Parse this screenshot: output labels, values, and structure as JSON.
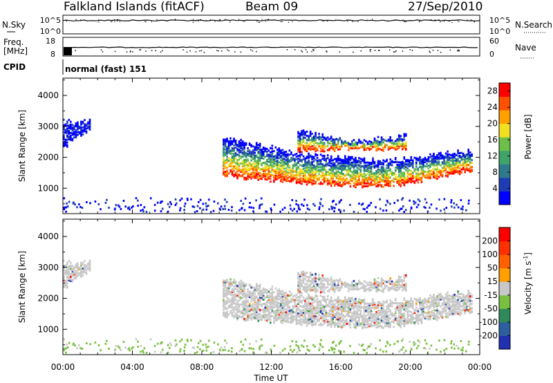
{
  "header": {
    "station": "Falkland Islands (fitACF)",
    "beam": "Beam 09",
    "date": "27/Sep/2010"
  },
  "chart_data": [
    {
      "type": "line",
      "panel": "noise",
      "left_label": "N.Sky",
      "right_label": "N.Search",
      "left_ticks": [
        "10^5",
        "10^0"
      ],
      "right_ticks": [
        "10^5",
        "10^0"
      ],
      "note": ""
    },
    {
      "type": "line",
      "panel": "frequency",
      "left_label_line1": "Freq.",
      "left_label_line2": "[MHz]",
      "right_label": "Nave",
      "left_ticks": [
        18,
        8
      ],
      "right_ticks": [
        60,
        0
      ],
      "cpid_label": "CPID",
      "cpid_text": "normal (fast) 151"
    },
    {
      "type": "heatmap",
      "panel": "power",
      "ylabel": "Slant Range [km]",
      "yticks": [
        1000,
        2000,
        3000,
        4000
      ],
      "ylim": [
        180,
        4560
      ],
      "colorbar_label": "Power [dB]",
      "colorbar_ticks": [
        4,
        8,
        12,
        16,
        20,
        24,
        28
      ],
      "colorbar_range": [
        0,
        30
      ],
      "colors": [
        "#0000ff",
        "#1e3cb4",
        "#2e7a8c",
        "#3fa36a",
        "#6cc04a",
        "#f0e020",
        "#ffa000",
        "#ff5000",
        "#ff0000"
      ],
      "bands": [
        {
          "start": 9.2,
          "end": 23.6,
          "lo": [
            1400,
            1160,
            1050,
            1600
          ],
          "hi": [
            2650,
            2080,
            1900,
            2250
          ],
          "mean": "power"
        },
        {
          "start": 13.5,
          "end": 19.8,
          "lo": [
            2200,
            2300,
            2250
          ],
          "hi": [
            2850,
            2500,
            2700
          ],
          "mean": "power"
        },
        {
          "start": 0.0,
          "end": 1.6,
          "lo": [
            2300,
            2700,
            2900
          ],
          "hi": [
            3200,
            3150,
            3200
          ],
          "mean": "weak"
        }
      ]
    },
    {
      "type": "heatmap",
      "panel": "velocity",
      "ylabel": "Slant Range [km]",
      "yticks": [
        1000,
        2000,
        3000,
        4000
      ],
      "ylim": [
        180,
        4560
      ],
      "xticks": [
        "00:00",
        "04:00",
        "08:00",
        "12:00",
        "16:00",
        "20:00",
        "00:00"
      ],
      "xlim": [
        0,
        24
      ],
      "xlabel": "Time UT",
      "colorbar_label": "Velocity [m s",
      "colorbar_label_sup": "-1",
      "colorbar_label_end": "]",
      "colorbar_ticks": [
        200,
        100,
        50,
        15,
        -15,
        -50,
        -100,
        -200
      ],
      "colors": [
        "#2030b0",
        "#2d5fa0",
        "#2e8a5a",
        "#7ac040",
        "#c8c8c8",
        "#ffa000",
        "#ff6000",
        "#ff3000",
        "#ff0000"
      ]
    }
  ]
}
